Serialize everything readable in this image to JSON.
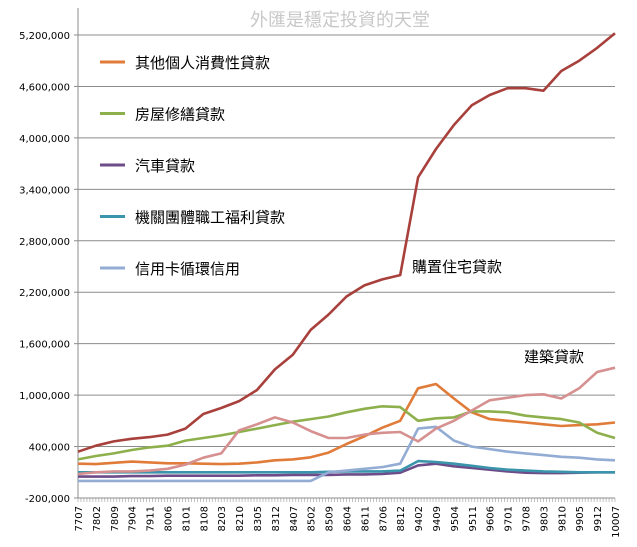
{
  "chart_data": {
    "type": "line",
    "title": "外匯是穩定投資的天堂",
    "xlabel": "",
    "ylabel": "",
    "ylim": [
      -200000,
      5200000
    ],
    "yticks": [
      -200000,
      400000,
      1000000,
      1600000,
      2200000,
      2800000,
      3400000,
      4000000,
      4600000,
      5200000
    ],
    "ytick_labels": [
      "-200,000",
      "400,000",
      "1,000,000",
      "1,600,000",
      "2,200,000",
      "2,800,000",
      "3,400,000",
      "4,000,000",
      "4,600,000",
      "5,200,000"
    ],
    "grid": true,
    "legend_position": "top-left",
    "categories": [
      "7707",
      "7802",
      "7809",
      "7904",
      "7911",
      "8006",
      "8101",
      "8108",
      "8203",
      "8210",
      "8305",
      "8312",
      "8407",
      "8502",
      "8509",
      "8604",
      "8611",
      "8706",
      "8812",
      "9402",
      "9409",
      "9504",
      "9511",
      "9606",
      "9701",
      "9708",
      "9803",
      "9810",
      "9905",
      "9912",
      "10007"
    ],
    "series": [
      {
        "name": "其他個人消費性貸款",
        "color": "#e07b39",
        "legend": true,
        "values": [
          200000,
          195000,
          210000,
          225000,
          215000,
          205000,
          205000,
          200000,
          195000,
          200000,
          215000,
          240000,
          250000,
          275000,
          330000,
          430000,
          520000,
          620000,
          700000,
          1080000,
          1130000,
          960000,
          800000,
          720000,
          700000,
          680000,
          660000,
          640000,
          650000,
          660000,
          680000
        ]
      },
      {
        "name": "房屋修繕貸款",
        "color": "#8db04c",
        "legend": true,
        "values": [
          250000,
          290000,
          320000,
          360000,
          390000,
          410000,
          470000,
          500000,
          530000,
          570000,
          610000,
          650000,
          690000,
          720000,
          750000,
          800000,
          840000,
          870000,
          860000,
          700000,
          730000,
          740000,
          810000,
          810000,
          800000,
          760000,
          740000,
          720000,
          680000,
          560000,
          500000
        ]
      },
      {
        "name": "汽車貸款",
        "color": "#6e4c8a",
        "legend": true,
        "values": [
          50000,
          50000,
          50000,
          55000,
          55000,
          60000,
          60000,
          60000,
          60000,
          60000,
          65000,
          65000,
          70000,
          70000,
          70000,
          75000,
          75000,
          80000,
          95000,
          180000,
          200000,
          170000,
          150000,
          130000,
          110000,
          95000,
          90000,
          90000,
          95000,
          100000,
          100000
        ]
      },
      {
        "name": "機關團體職工福利貸款",
        "color": "#3a94ab",
        "legend": true,
        "values": [
          100000,
          100000,
          100000,
          100000,
          100000,
          100000,
          100000,
          100000,
          100000,
          100000,
          100000,
          100000,
          100000,
          100000,
          105000,
          110000,
          110000,
          110000,
          120000,
          230000,
          220000,
          200000,
          175000,
          150000,
          130000,
          120000,
          110000,
          105000,
          100000,
          100000,
          100000
        ]
      },
      {
        "name": "信用卡循環信用",
        "color": "#93acd4",
        "legend": true,
        "values": [
          0,
          0,
          0,
          0,
          0,
          0,
          0,
          0,
          0,
          0,
          0,
          0,
          0,
          0,
          100000,
          120000,
          140000,
          160000,
          200000,
          610000,
          630000,
          470000,
          400000,
          370000,
          340000,
          320000,
          300000,
          280000,
          270000,
          250000,
          240000
        ]
      },
      {
        "name": "購置住宅貸款",
        "color": "#a8403c",
        "label": "購置住宅貸款",
        "values": [
          340000,
          410000,
          460000,
          490000,
          510000,
          540000,
          610000,
          780000,
          850000,
          930000,
          1060000,
          1300000,
          1470000,
          1760000,
          1940000,
          2150000,
          2280000,
          2350000,
          2400000,
          3540000,
          3870000,
          4150000,
          4380000,
          4500000,
          4580000,
          4580000,
          4550000,
          4780000,
          4900000,
          5050000,
          5220000
        ]
      },
      {
        "name": "建築貸款",
        "color": "#d69090",
        "label": "建築貸款",
        "values": [
          80000,
          100000,
          110000,
          110000,
          120000,
          140000,
          190000,
          270000,
          320000,
          590000,
          660000,
          740000,
          680000,
          580000,
          500000,
          500000,
          540000,
          560000,
          570000,
          460000,
          610000,
          700000,
          820000,
          940000,
          970000,
          1000000,
          1010000,
          960000,
          1080000,
          1270000,
          1320000
        ]
      }
    ],
    "x_tick_labels": [
      "7707",
      "7802",
      "7809",
      "7904",
      "7911",
      "8006",
      "8101",
      "8108",
      "8203",
      "8210",
      "8305",
      "8312",
      "8407",
      "8502",
      "8509",
      "8604",
      "8611",
      "8706",
      "8812",
      "9402",
      "9409",
      "9504",
      "9511",
      "9606",
      "9701",
      "9708",
      "9803",
      "9810",
      "9905",
      "9912",
      "10007"
    ]
  }
}
